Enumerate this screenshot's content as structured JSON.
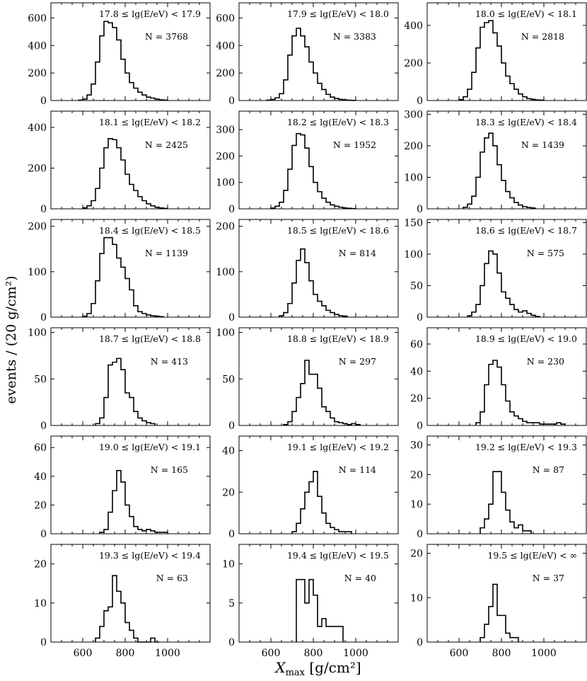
{
  "figure": {
    "ylabel": "events / (20 g/cm²)",
    "xlabel_main": "X",
    "xlabel_sub": "max",
    "xlabel_units": " [g/cm²]",
    "x_ticks": [
      600,
      800,
      1000
    ],
    "xlim": [
      450,
      1200
    ],
    "bin_width": 20
  },
  "chart_data": [
    {
      "type": "bar",
      "title": "17.8 ≤ lg(E/eV) < 17.9",
      "n_label": "N = 3768",
      "ylim": [
        0,
        710
      ],
      "yticks": [
        0,
        200,
        400,
        600
      ],
      "bin_start": 580,
      "values": [
        3,
        10,
        40,
        120,
        280,
        470,
        575,
        565,
        530,
        440,
        300,
        200,
        130,
        90,
        60,
        40,
        25,
        18,
        10,
        5,
        3
      ]
    },
    {
      "type": "bar",
      "title": "17.9 ≤ lg(E/eV) < 18.0",
      "n_label": "N = 3383",
      "ylim": [
        0,
        710
      ],
      "yticks": [
        0,
        200,
        400,
        600
      ],
      "bin_start": 580,
      "values": [
        3,
        8,
        20,
        50,
        150,
        330,
        470,
        525,
        470,
        390,
        280,
        200,
        125,
        80,
        45,
        25,
        15,
        8,
        4,
        2,
        1
      ]
    },
    {
      "type": "bar",
      "title": "18.0 ≤ lg(E/eV) < 18.1",
      "n_label": "N = 2818",
      "ylim": [
        0,
        520
      ],
      "yticks": [
        0,
        200,
        400
      ],
      "bin_start": 600,
      "values": [
        5,
        20,
        60,
        150,
        280,
        390,
        415,
        425,
        360,
        290,
        200,
        130,
        90,
        60,
        35,
        20,
        10,
        6,
        3,
        2
      ]
    },
    {
      "type": "bar",
      "title": "18.1 ≤ lg(E/eV) < 18.2",
      "n_label": "N = 2425",
      "ylim": [
        0,
        480
      ],
      "yticks": [
        0,
        200,
        400
      ],
      "bin_start": 600,
      "values": [
        5,
        15,
        40,
        100,
        200,
        300,
        345,
        340,
        300,
        240,
        170,
        120,
        90,
        60,
        40,
        25,
        15,
        8,
        4,
        2
      ]
    },
    {
      "type": "bar",
      "title": "18.2 ≤ lg(E/eV) < 18.3",
      "n_label": "N = 1952",
      "ylim": [
        0,
        370
      ],
      "yticks": [
        0,
        100,
        200,
        300
      ],
      "bin_start": 600,
      "values": [
        3,
        10,
        25,
        70,
        150,
        240,
        285,
        280,
        230,
        160,
        100,
        65,
        40,
        25,
        15,
        10,
        6,
        3,
        2,
        1
      ]
    },
    {
      "type": "bar",
      "title": "18.3 ≤ lg(E/eV) < 18.4",
      "n_label": "N = 1439",
      "ylim": [
        0,
        310
      ],
      "yticks": [
        0,
        100,
        200,
        300
      ],
      "bin_start": 620,
      "values": [
        5,
        15,
        40,
        100,
        180,
        225,
        240,
        200,
        140,
        90,
        55,
        35,
        20,
        12,
        7,
        4,
        2
      ]
    },
    {
      "type": "bar",
      "title": "18.4 ≤ lg(E/eV) < 18.5",
      "n_label": "N = 1139",
      "ylim": [
        0,
        215
      ],
      "yticks": [
        0,
        100,
        200
      ],
      "bin_start": 600,
      "values": [
        2,
        8,
        30,
        80,
        140,
        175,
        175,
        160,
        130,
        110,
        85,
        60,
        25,
        12,
        8,
        5,
        3,
        2,
        1
      ]
    },
    {
      "type": "bar",
      "title": "18.5 ≤ lg(E/eV) < 18.6",
      "n_label": "N = 814",
      "ylim": [
        0,
        215
      ],
      "yticks": [
        0,
        100,
        200
      ],
      "bin_start": 640,
      "values": [
        3,
        10,
        30,
        75,
        125,
        150,
        120,
        80,
        50,
        35,
        25,
        15,
        10,
        6,
        3,
        2
      ]
    },
    {
      "type": "bar",
      "title": "18.6 ≤ lg(E/eV) < 18.7",
      "n_label": "N = 575",
      "ylim": [
        0,
        155
      ],
      "yticks": [
        0,
        50,
        100,
        150
      ],
      "bin_start": 640,
      "values": [
        2,
        8,
        20,
        50,
        85,
        105,
        100,
        70,
        40,
        30,
        20,
        12,
        8,
        10,
        6,
        3,
        1
      ]
    },
    {
      "type": "bar",
      "title": "18.7 ≤ lg(E/eV) < 18.8",
      "n_label": "N = 413",
      "ylim": [
        0,
        105
      ],
      "yticks": [
        0,
        50,
        100
      ],
      "bin_start": 660,
      "values": [
        2,
        8,
        30,
        65,
        68,
        72,
        60,
        35,
        30,
        15,
        8,
        5,
        3,
        2
      ]
    },
    {
      "type": "bar",
      "title": "18.8 ≤ lg(E/eV) < 18.9",
      "n_label": "N = 297",
      "ylim": [
        0,
        105
      ],
      "yticks": [
        0,
        50,
        100
      ],
      "bin_start": 660,
      "values": [
        1,
        4,
        15,
        30,
        45,
        70,
        55,
        55,
        40,
        20,
        15,
        8,
        4,
        3,
        2,
        1,
        2,
        1
      ]
    },
    {
      "type": "bar",
      "title": "18.9 ≤ lg(E/eV) < 19.0",
      "n_label": "N = 230",
      "ylim": [
        0,
        72
      ],
      "yticks": [
        0,
        20,
        40,
        60
      ],
      "bin_start": 680,
      "values": [
        2,
        10,
        30,
        45,
        48,
        43,
        30,
        18,
        10,
        7,
        5,
        3,
        2,
        2,
        2,
        1,
        1,
        1,
        1,
        2,
        1
      ]
    },
    {
      "type": "bar",
      "title": "19.0 ≤ lg(E/eV) < 19.1",
      "n_label": "N = 165",
      "ylim": [
        0,
        68
      ],
      "yticks": [
        0,
        20,
        40,
        60
      ],
      "bin_start": 680,
      "values": [
        1,
        3,
        15,
        30,
        44,
        36,
        20,
        12,
        5,
        3,
        2,
        3,
        2,
        1,
        1,
        1
      ]
    },
    {
      "type": "bar",
      "title": "19.1 ≤ lg(E/eV) < 19.2",
      "n_label": "N = 114",
      "ylim": [
        0,
        47
      ],
      "yticks": [
        0,
        20,
        40
      ],
      "bin_start": 700,
      "values": [
        1,
        5,
        12,
        20,
        25,
        30,
        18,
        10,
        5,
        3,
        2,
        1,
        1,
        1
      ]
    },
    {
      "type": "bar",
      "title": "19.2 ≤ lg(E/eV) < 19.3",
      "n_label": "N = 87",
      "ylim": [
        0,
        33
      ],
      "yticks": [
        0,
        10,
        20,
        30
      ],
      "bin_start": 700,
      "values": [
        2,
        5,
        10,
        21,
        21,
        14,
        8,
        4,
        2,
        3,
        1,
        1
      ]
    },
    {
      "type": "bar",
      "title": "19.3 ≤ lg(E/eV) < 19.4",
      "n_label": "N = 63",
      "ylim": [
        0,
        25
      ],
      "yticks": [
        0,
        10,
        20
      ],
      "bin_start": 660,
      "values": [
        1,
        4,
        8,
        9,
        17,
        13,
        10,
        5,
        3,
        1,
        0,
        0,
        0,
        1,
        0
      ]
    },
    {
      "type": "bar",
      "title": "19.4 ≤ lg(E/eV) < 19.5",
      "n_label": "N = 40",
      "ylim": [
        0,
        12.5
      ],
      "yticks": [
        0,
        5,
        10
      ],
      "bin_start": 720,
      "values": [
        8,
        8,
        5,
        8,
        6,
        2,
        3,
        2,
        2,
        2,
        2
      ]
    },
    {
      "type": "bar",
      "title": "19.5 ≤ lg(E/eV) < ∞",
      "n_label": "N = 37",
      "ylim": [
        0,
        22
      ],
      "yticks": [
        0,
        10,
        20
      ],
      "bin_start": 700,
      "values": [
        1,
        4,
        8,
        13,
        6,
        6,
        2,
        1,
        1
      ]
    }
  ]
}
